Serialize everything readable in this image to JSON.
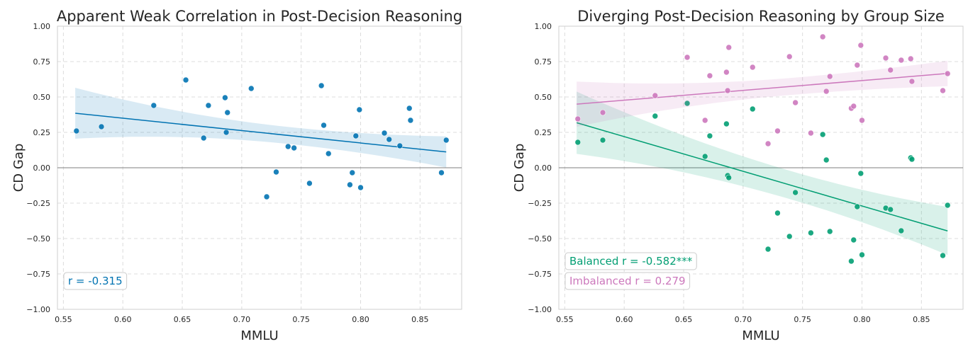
{
  "chart_data": [
    {
      "type": "scatter",
      "title": "Apparent Weak Correlation in Post-Decision Reasoning",
      "xlabel": "MMLU",
      "ylabel": "CD Gap",
      "xlim": [
        0.545,
        0.885
      ],
      "ylim": [
        -1.0,
        1.0
      ],
      "xticks": [
        "0.55",
        "0.60",
        "0.65",
        "0.70",
        "0.75",
        "0.80",
        "0.85"
      ],
      "yticks": [
        "1.00",
        "0.75",
        "0.50",
        "0.25",
        "0.00",
        "−0.25",
        "−0.50",
        "−0.75",
        "−1.00"
      ],
      "grid": true,
      "series": [
        {
          "color": "#0173b2",
          "fit": {
            "slope": -0.875,
            "intercept": 0.875
          },
          "points": [
            [
              0.561,
              0.26
            ],
            [
              0.582,
              0.29
            ],
            [
              0.626,
              0.44
            ],
            [
              0.653,
              0.62
            ],
            [
              0.668,
              0.21
            ],
            [
              0.672,
              0.44
            ],
            [
              0.686,
              0.495
            ],
            [
              0.687,
              0.25
            ],
            [
              0.688,
              0.39
            ],
            [
              0.708,
              0.56
            ],
            [
              0.721,
              -0.205
            ],
            [
              0.729,
              -0.03
            ],
            [
              0.739,
              0.15
            ],
            [
              0.744,
              0.14
            ],
            [
              0.757,
              -0.11
            ],
            [
              0.767,
              0.58
            ],
            [
              0.769,
              0.3
            ],
            [
              0.773,
              0.1
            ],
            [
              0.791,
              -0.12
            ],
            [
              0.793,
              -0.035
            ],
            [
              0.796,
              0.225
            ],
            [
              0.799,
              0.41
            ],
            [
              0.8,
              -0.14
            ],
            [
              0.82,
              0.245
            ],
            [
              0.824,
              0.2
            ],
            [
              0.833,
              0.155
            ],
            [
              0.841,
              0.42
            ],
            [
              0.842,
              0.335
            ],
            [
              0.868,
              -0.035
            ],
            [
              0.872,
              0.195
            ]
          ]
        }
      ],
      "annotations": [
        {
          "text": "r = -0.315",
          "color": "#0173b2"
        }
      ]
    },
    {
      "type": "scatter",
      "title": "Diverging Post-Decision Reasoning by Group Size",
      "xlabel": "MMLU",
      "ylabel": "CD Gap",
      "xlim": [
        0.545,
        0.885
      ],
      "ylim": [
        -1.0,
        1.0
      ],
      "xticks": [
        "0.55",
        "0.60",
        "0.65",
        "0.70",
        "0.75",
        "0.80",
        "0.85"
      ],
      "yticks": [
        "1.00",
        "0.75",
        "0.50",
        "0.25",
        "0.00",
        "−0.25",
        "−0.50",
        "−0.75",
        "−1.00"
      ],
      "grid": true,
      "series": [
        {
          "color": "#029e73",
          "fit": {
            "slope": -2.45,
            "intercept": 1.69
          },
          "points": [
            [
              0.561,
              0.18
            ],
            [
              0.582,
              0.195
            ],
            [
              0.626,
              0.365
            ],
            [
              0.653,
              0.455
            ],
            [
              0.668,
              0.08
            ],
            [
              0.672,
              0.225
            ],
            [
              0.686,
              0.31
            ],
            [
              0.687,
              -0.055
            ],
            [
              0.688,
              -0.07
            ],
            [
              0.708,
              0.415
            ],
            [
              0.721,
              -0.575
            ],
            [
              0.729,
              -0.32
            ],
            [
              0.739,
              -0.485
            ],
            [
              0.744,
              -0.175
            ],
            [
              0.757,
              -0.46
            ],
            [
              0.767,
              0.235
            ],
            [
              0.77,
              0.055
            ],
            [
              0.773,
              -0.45
            ],
            [
              0.791,
              -0.66
            ],
            [
              0.793,
              -0.51
            ],
            [
              0.796,
              -0.275
            ],
            [
              0.799,
              -0.04
            ],
            [
              0.8,
              -0.615
            ],
            [
              0.82,
              -0.285
            ],
            [
              0.824,
              -0.295
            ],
            [
              0.833,
              -0.445
            ],
            [
              0.841,
              0.07
            ],
            [
              0.842,
              0.06
            ],
            [
              0.868,
              -0.62
            ],
            [
              0.872,
              -0.265
            ]
          ]
        },
        {
          "color": "#cc78bc",
          "fit": {
            "slope": 0.695,
            "intercept": 0.06
          },
          "points": [
            [
              0.561,
              0.345
            ],
            [
              0.582,
              0.39
            ],
            [
              0.626,
              0.51
            ],
            [
              0.653,
              0.78
            ],
            [
              0.668,
              0.335
            ],
            [
              0.672,
              0.65
            ],
            [
              0.686,
              0.675
            ],
            [
              0.687,
              0.545
            ],
            [
              0.688,
              0.85
            ],
            [
              0.708,
              0.71
            ],
            [
              0.721,
              0.17
            ],
            [
              0.729,
              0.26
            ],
            [
              0.739,
              0.785
            ],
            [
              0.744,
              0.46
            ],
            [
              0.757,
              0.245
            ],
            [
              0.767,
              0.925
            ],
            [
              0.77,
              0.54
            ],
            [
              0.773,
              0.645
            ],
            [
              0.791,
              0.42
            ],
            [
              0.793,
              0.435
            ],
            [
              0.796,
              0.725
            ],
            [
              0.799,
              0.865
            ],
            [
              0.8,
              0.335
            ],
            [
              0.82,
              0.775
            ],
            [
              0.824,
              0.69
            ],
            [
              0.833,
              0.76
            ],
            [
              0.841,
              0.77
            ],
            [
              0.842,
              0.61
            ],
            [
              0.868,
              0.545
            ],
            [
              0.872,
              0.665
            ]
          ]
        }
      ],
      "annotations": [
        {
          "text": "Balanced r = -0.582***",
          "color": "#029e73"
        },
        {
          "text": "Imbalanced r = 0.279",
          "color": "#cc78bc"
        }
      ]
    }
  ]
}
